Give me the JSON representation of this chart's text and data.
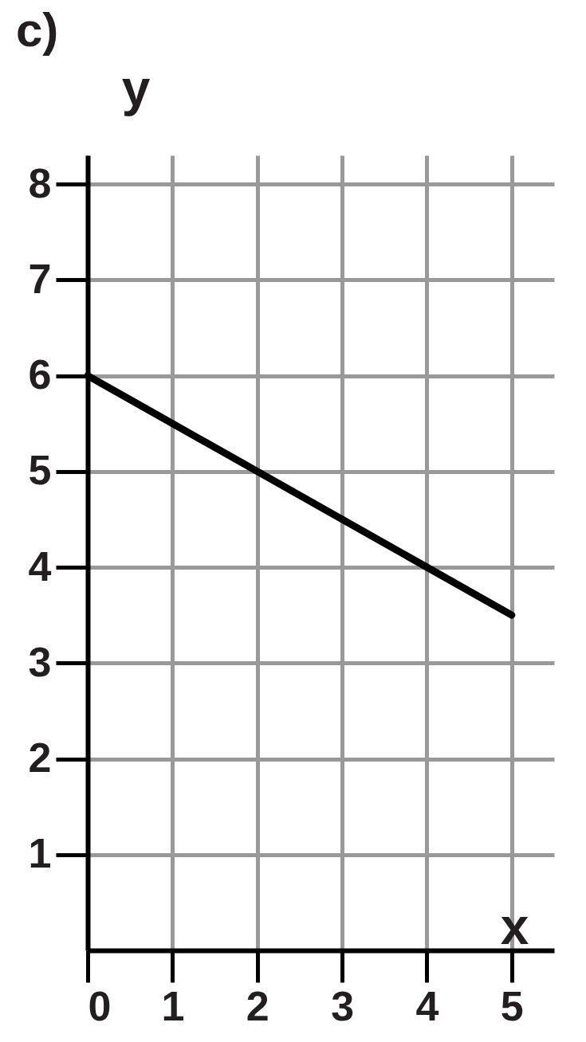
{
  "chart_data": {
    "type": "line",
    "title": "c)",
    "xlabel": "x",
    "ylabel": "y",
    "x": [
      0,
      5
    ],
    "series": [
      {
        "color": "#000000",
        "values": [
          6,
          3.5
        ]
      }
    ],
    "xlim": [
      0,
      5.5
    ],
    "ylim": [
      0,
      8.3
    ],
    "xticks": [
      0,
      1,
      2,
      3,
      4,
      5
    ],
    "yticks": [
      1,
      2,
      3,
      4,
      5,
      6,
      7,
      8
    ],
    "grid": true,
    "marker": "none"
  }
}
